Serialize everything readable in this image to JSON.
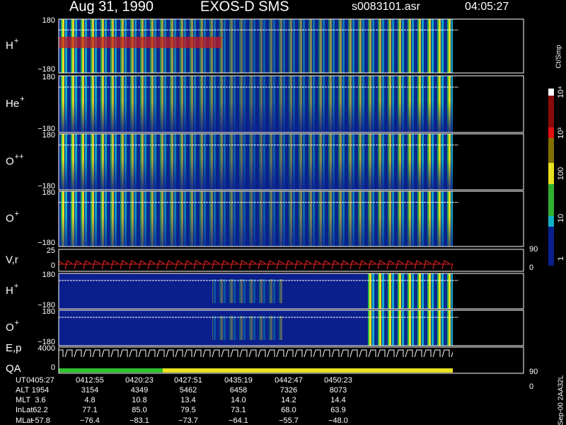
{
  "header": {
    "date": "Aug 31, 1990",
    "instrument": "EXOS-D SMS",
    "file": "s0083101.asr",
    "time": "04:05:27"
  },
  "panels": [
    {
      "label": "H",
      "sup": "+",
      "ticks": [
        "180",
        "−180"
      ]
    },
    {
      "label": "He",
      "sup": "+",
      "ticks": [
        "180",
        "−180"
      ]
    },
    {
      "label": "O",
      "sup": "++",
      "ticks": [
        "180",
        "−180"
      ]
    },
    {
      "label": "O",
      "sup": "+",
      "ticks": [
        "180",
        "−180"
      ]
    },
    {
      "label": "V,r",
      "ticks": [
        "25",
        "0"
      ],
      "right_ticks": [
        "90",
        "0"
      ]
    },
    {
      "label": "H",
      "sup": "+",
      "ticks": [
        "180",
        "−180"
      ]
    },
    {
      "label": "O",
      "sup": "+",
      "ticks": [
        "180",
        "−180"
      ]
    },
    {
      "label": "E,p",
      "label2": "QA",
      "ticks": [
        "4000",
        "0"
      ],
      "right_ticks": [
        "90",
        "0"
      ]
    }
  ],
  "colorbar": {
    "unit": "Ct/Smp",
    "labels": [
      "10⁴",
      "10³",
      "100",
      "10",
      "1"
    ]
  },
  "footer": {
    "rows": [
      {
        "label": "UT",
        "values": [
          "0405:27",
          "0412:55",
          "0420:23",
          "0427:51",
          "0435:19",
          "0442:47",
          "0450:23"
        ]
      },
      {
        "label": "ALT",
        "values": [
          "1954",
          "3154",
          "4349",
          "5462",
          "6458",
          "7326",
          "8073"
        ]
      },
      {
        "label": "MLT",
        "values": [
          "3.6",
          "4.8",
          "10.8",
          "13.4",
          "14.0",
          "14.2",
          "14.4"
        ]
      },
      {
        "label": "InLat",
        "values": [
          "62.2",
          "77.1",
          "85.0",
          "79.5",
          "73.1",
          "68.0",
          "63.9"
        ]
      },
      {
        "label": "MLat",
        "values": [
          "−57.8",
          "−76.4",
          "−83.1",
          "−73.7",
          "−64.1",
          "−55.7",
          "−48.0"
        ]
      }
    ],
    "stamp": "Sep-00 2AA32L"
  }
}
